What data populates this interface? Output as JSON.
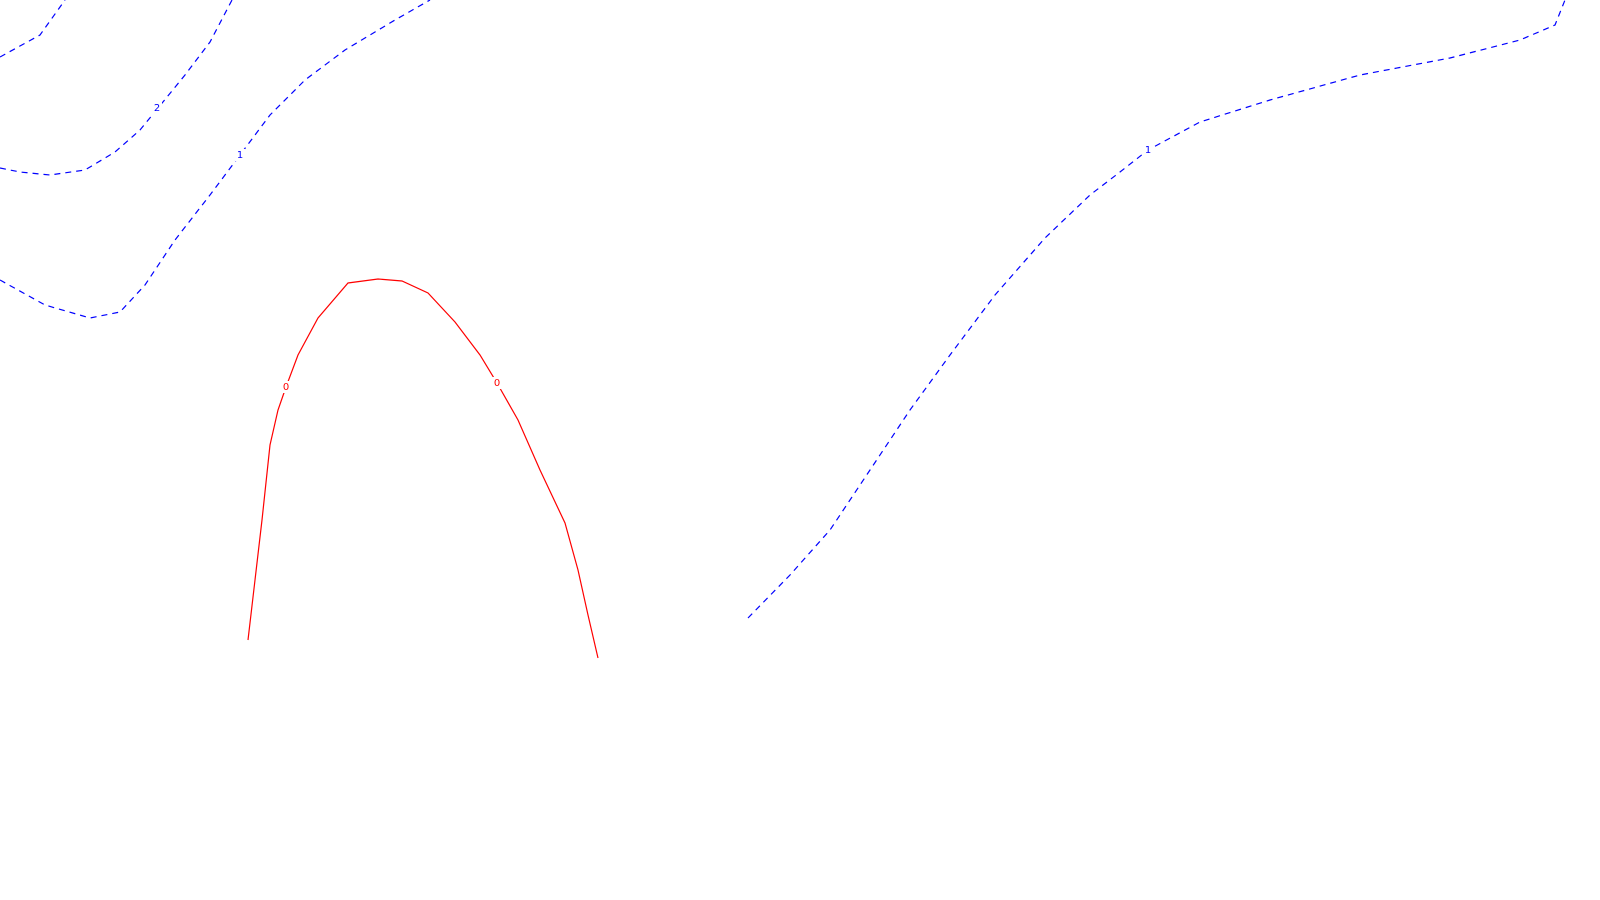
{
  "chart_data": {
    "type": "line",
    "title": "",
    "xlabel": "",
    "ylabel": "",
    "grid": false,
    "legend": "none",
    "colors": {
      "positive": "#0000ff",
      "zero": "#ff0000"
    },
    "series": [
      {
        "level": 2,
        "label": "2",
        "style": "dashed",
        "color": "#0000ff"
      },
      {
        "level": 1,
        "label": "1",
        "style": "dashed",
        "color": "#0000ff"
      },
      {
        "level": 1,
        "label": "1",
        "style": "dashed",
        "color": "#0000ff"
      },
      {
        "level": 0,
        "label": "0",
        "style": "solid",
        "color": "#ff0000"
      }
    ]
  }
}
